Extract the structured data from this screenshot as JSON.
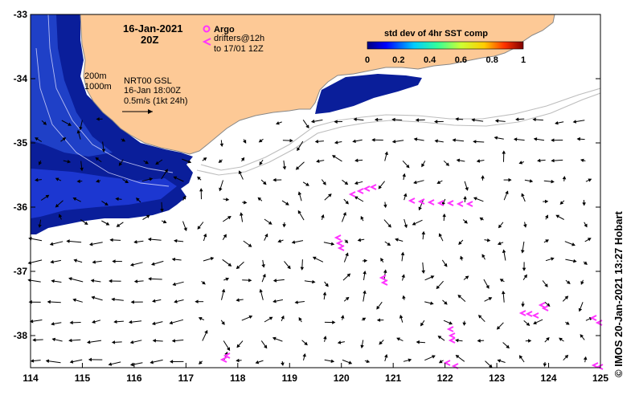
{
  "map": {
    "date_title": "16-Jan-2021",
    "time_title": "20Z",
    "legend": {
      "argo_label": "Argo",
      "drifters_line1": "drifters@12h",
      "drifters_line2": "to 17/01 12Z",
      "argo_color": "#ff33ff",
      "drifter_color": "#ff33ff"
    },
    "contours": {
      "line1": "200m",
      "line2": "1000m"
    },
    "product": {
      "line1": "NRT00 GSL",
      "line2": "16-Jan 18:00Z",
      "line3": "0.5m/s (1kt 24h)"
    },
    "colorbar": {
      "title": "std dev of 4hr SST comp",
      "ticks": [
        "0",
        "0.2",
        "0.4",
        "0.6",
        "0.8",
        "1"
      ],
      "min": 0,
      "max": 1
    },
    "axes": {
      "lon_ticks": [
        "114",
        "115",
        "116",
        "117",
        "118",
        "119",
        "120",
        "121",
        "122",
        "123",
        "124",
        "125"
      ],
      "lat_ticks": [
        "-33",
        "-34",
        "-35",
        "-36",
        "-37",
        "-38"
      ],
      "lon_range": [
        114,
        125
      ],
      "lat_range": [
        -38.5,
        -33
      ]
    },
    "credit": "© IMOS 20-Jan-2021 13:27 Hobart",
    "colors": {
      "land": "#fdc996",
      "sst_dark": "#00008b",
      "sst_mid": "#1e3cff",
      "arrows": "#000000",
      "bathymetry": "#bdbdbd"
    }
  }
}
